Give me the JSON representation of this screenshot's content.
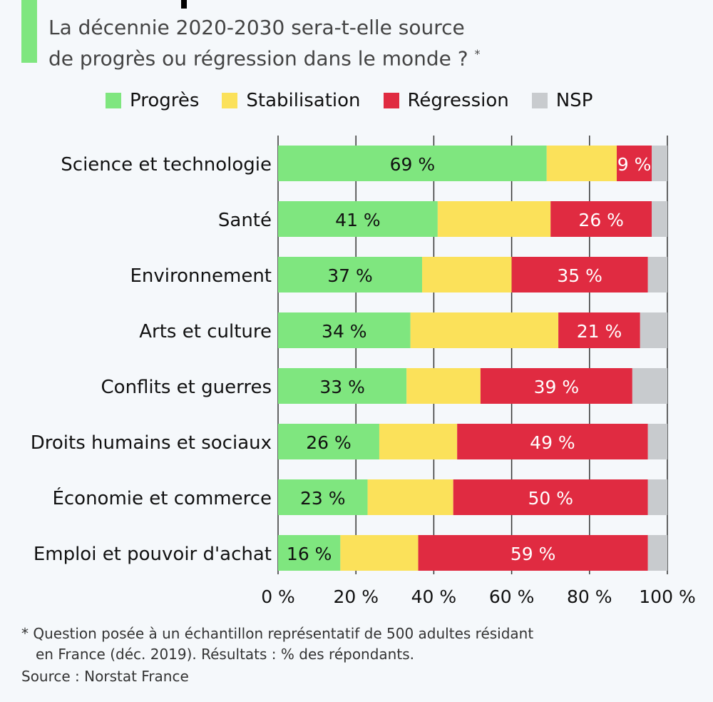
{
  "header": {
    "subtitle_line1": "La décennie 2020-2030 sera-t-elle source",
    "subtitle_line2": "de progrès ou régression dans le monde ?",
    "asterisk": "*"
  },
  "colors": {
    "accent": "#7fe67f",
    "Progrès": "#7fe67f",
    "Stabilisation": "#fbe15a",
    "Régression": "#e02b41",
    "NSP": "#c8cbce",
    "grid": "#333333"
  },
  "chart_data": {
    "type": "bar",
    "orientation": "horizontal-stacked",
    "categories": [
      "Science et technologie",
      "Santé",
      "Environnement",
      "Arts et culture",
      "Conflits et guerres",
      "Droits humains et sociaux",
      "Économie et commerce",
      "Emploi et pouvoir d'achat"
    ],
    "series": [
      {
        "name": "Progrès",
        "values": [
          69,
          41,
          37,
          34,
          33,
          26,
          23,
          16
        ],
        "labeled": true
      },
      {
        "name": "Stabilisation",
        "values": [
          18,
          29,
          23,
          38,
          19,
          20,
          22,
          20
        ],
        "labeled": false
      },
      {
        "name": "Régression",
        "values": [
          9,
          26,
          35,
          21,
          39,
          49,
          50,
          59
        ],
        "labeled": true
      },
      {
        "name": "NSP",
        "values": [
          4,
          4,
          5,
          7,
          9,
          5,
          5,
          5
        ],
        "labeled": false
      }
    ],
    "xlim": [
      0,
      100
    ],
    "xticks": [
      "0 %",
      "20 %",
      "40 %",
      "60 %",
      "80 %",
      "100 %"
    ],
    "grid": true,
    "legend_position": "top"
  },
  "footer": {
    "note_line1": "* Question posée à un échantillon représentatif de 500 adultes résidant",
    "note_line2": "en France (déc. 2019). Résultats : % des répondants.",
    "source": "Source : Norstat France"
  }
}
